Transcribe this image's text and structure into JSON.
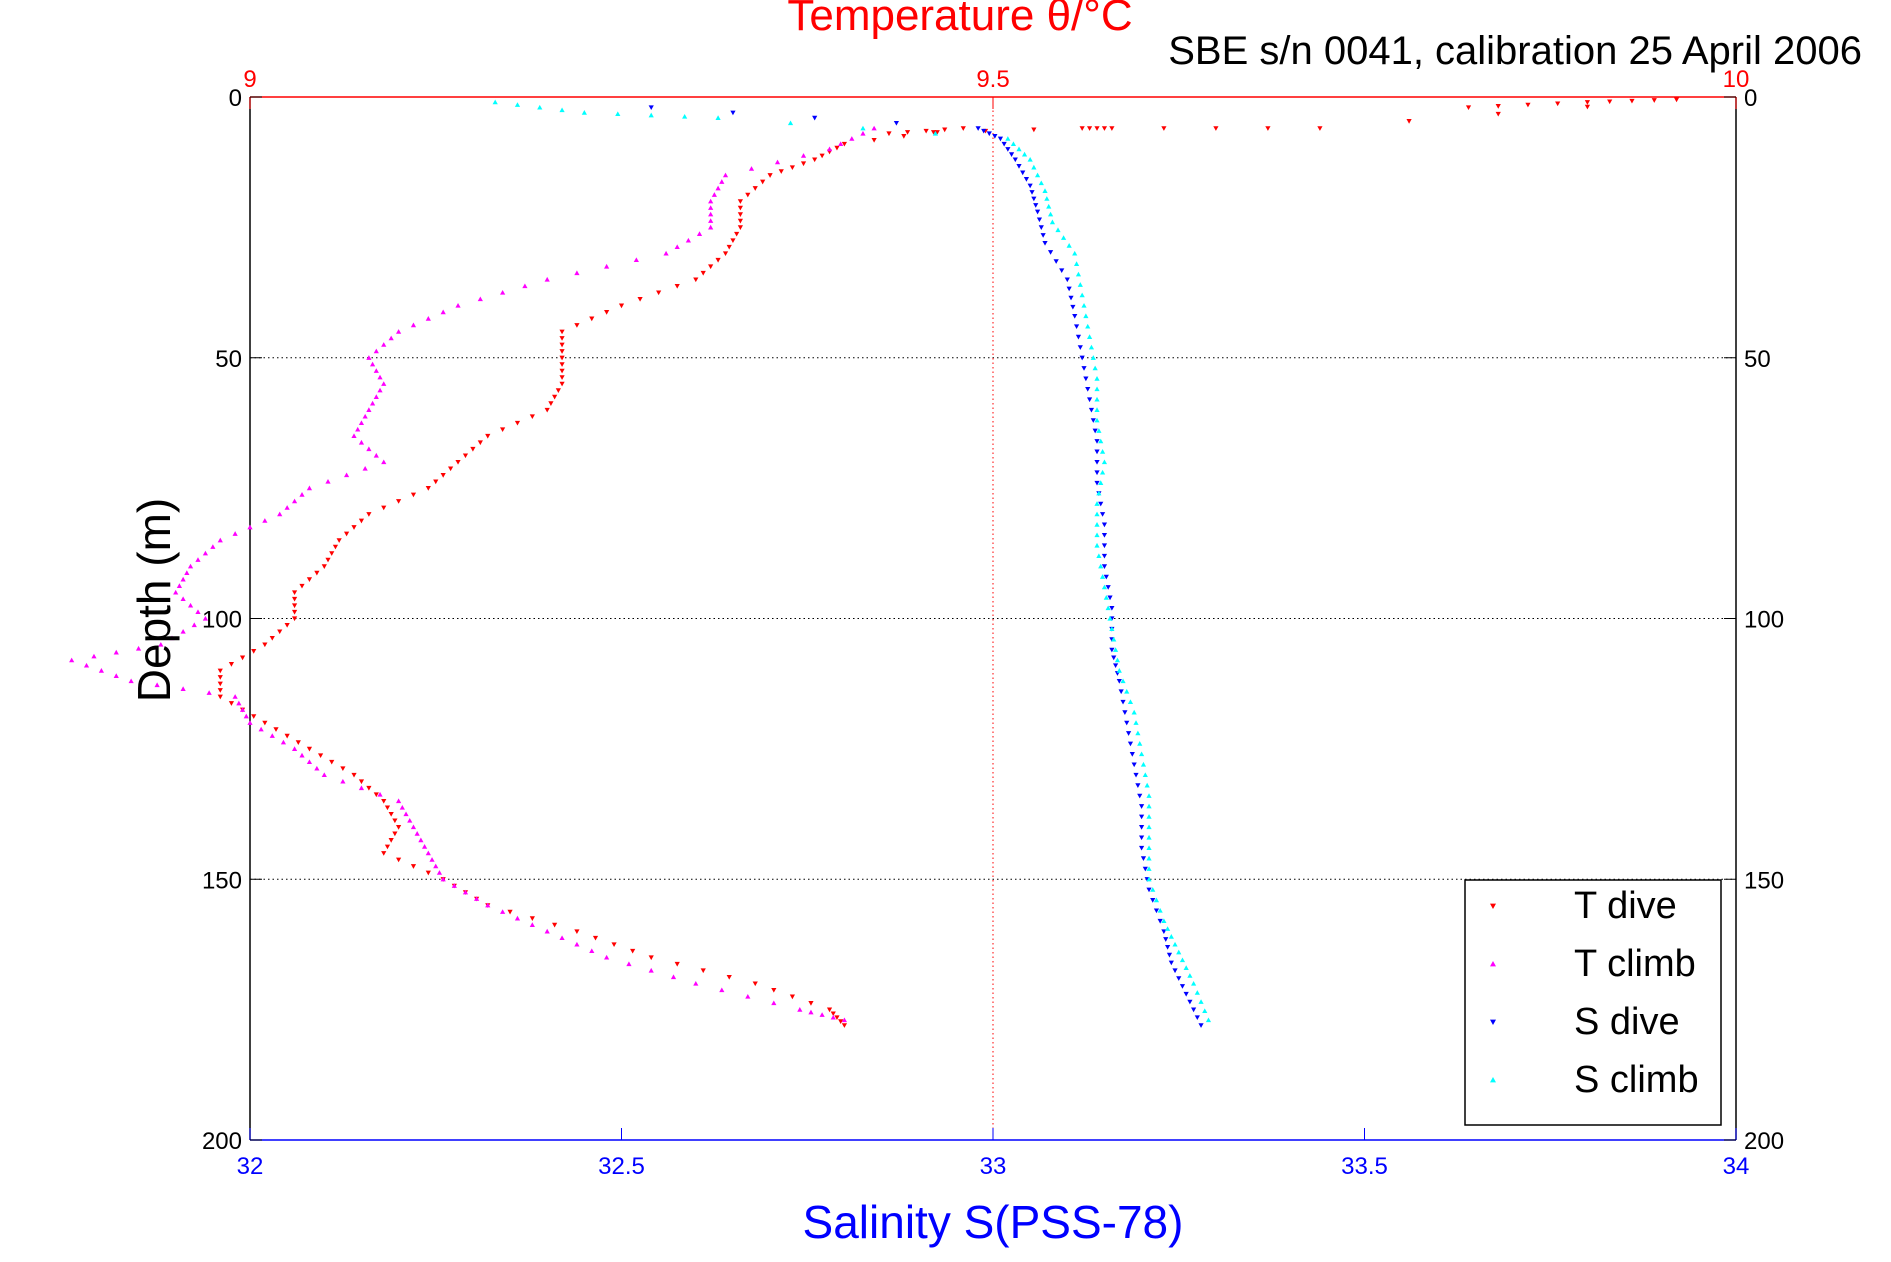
{
  "chart_data": {
    "type": "scatter",
    "title": "Temperature θ/°C",
    "subtitle": "SBE s/n 0041, calibration 25 April 2006",
    "xlabel": "Salinity S(PSS-78)",
    "ylabel": "Depth (m)",
    "x_salinity_range": [
      32,
      34
    ],
    "x_temperature_range": [
      9,
      10
    ],
    "y_range": [
      0,
      200
    ],
    "y_reversed": true,
    "salinity_ticks": [
      "32",
      "32.5",
      "33",
      "33.5",
      "34"
    ],
    "temperature_ticks": [
      "9",
      "9.5",
      "10"
    ],
    "depth_ticks": [
      "0",
      "50",
      "100",
      "150",
      "200"
    ],
    "grid": "horizontal dotted at depth ticks, vertical dotted at 9.5 °C / 33",
    "legend_position": "bottom-right",
    "colors": {
      "temperature_axis": "#ff0000",
      "salinity_axis": "#0000ff"
    },
    "series": [
      {
        "name": "T dive",
        "color": "#ff0000",
        "marker": "triangle-down",
        "axis": "temperature",
        "points": [
          [
            9.82,
            2
          ],
          [
            9.9,
            1
          ],
          [
            9.96,
            0.5
          ],
          [
            9.72,
            6
          ],
          [
            9.58,
            6
          ],
          [
            9.56,
            6
          ],
          [
            9.43,
            7
          ],
          [
            9.48,
            6
          ],
          [
            9.4,
            9
          ],
          [
            9.38,
            12
          ],
          [
            9.35,
            15
          ],
          [
            9.33,
            20
          ],
          [
            9.33,
            25
          ],
          [
            9.32,
            30
          ],
          [
            9.3,
            35
          ],
          [
            9.25,
            40
          ],
          [
            9.21,
            45
          ],
          [
            9.21,
            50
          ],
          [
            9.21,
            55
          ],
          [
            9.2,
            60
          ],
          [
            9.16,
            65
          ],
          [
            9.14,
            70
          ],
          [
            9.12,
            75
          ],
          [
            9.08,
            80
          ],
          [
            9.06,
            85
          ],
          [
            9.05,
            90
          ],
          [
            9.03,
            95
          ],
          [
            9.03,
            100
          ],
          [
            9.01,
            105
          ],
          [
            8.98,
            110
          ],
          [
            8.98,
            115
          ],
          [
            9.01,
            120
          ],
          [
            9.04,
            125
          ],
          [
            9.07,
            130
          ],
          [
            9.09,
            135
          ],
          [
            9.1,
            140
          ],
          [
            9.09,
            145
          ],
          [
            9.13,
            150
          ],
          [
            9.16,
            155
          ],
          [
            9.22,
            160
          ],
          [
            9.27,
            165
          ],
          [
            9.34,
            170
          ],
          [
            9.39,
            175
          ],
          [
            9.4,
            178
          ]
        ]
      },
      {
        "name": "T climb",
        "color": "#ff00ff",
        "marker": "triangle-up",
        "axis": "temperature",
        "points": [
          [
            9.42,
            6
          ],
          [
            9.39,
            10
          ],
          [
            9.32,
            15
          ],
          [
            9.31,
            20
          ],
          [
            9.31,
            25
          ],
          [
            9.28,
            30
          ],
          [
            9.2,
            35
          ],
          [
            9.14,
            40
          ],
          [
            9.1,
            45
          ],
          [
            9.08,
            50
          ],
          [
            9.09,
            55
          ],
          [
            9.08,
            60
          ],
          [
            9.07,
            65
          ],
          [
            9.09,
            70
          ],
          [
            9.04,
            75
          ],
          [
            9.02,
            80
          ],
          [
            8.98,
            85
          ],
          [
            8.96,
            90
          ],
          [
            8.95,
            95
          ],
          [
            8.97,
            100
          ],
          [
            8.94,
            105
          ],
          [
            8.88,
            108
          ],
          [
            8.92,
            112
          ],
          [
            8.99,
            115
          ],
          [
            9.0,
            120
          ],
          [
            9.03,
            125
          ],
          [
            9.05,
            130
          ],
          [
            9.1,
            135
          ],
          [
            9.11,
            140
          ],
          [
            9.12,
            145
          ],
          [
            9.13,
            150
          ],
          [
            9.16,
            155
          ],
          [
            9.2,
            160
          ],
          [
            9.24,
            165
          ],
          [
            9.3,
            170
          ],
          [
            9.37,
            175
          ],
          [
            9.4,
            177
          ]
        ]
      },
      {
        "name": "S dive",
        "color": "#0000ff",
        "marker": "triangle-down",
        "axis": "salinity",
        "points": [
          [
            32.54,
            2
          ],
          [
            32.98,
            6
          ],
          [
            33.01,
            8
          ],
          [
            33.03,
            12
          ],
          [
            33.05,
            17
          ],
          [
            33.06,
            22
          ],
          [
            33.07,
            28
          ],
          [
            33.1,
            35
          ],
          [
            33.11,
            42
          ],
          [
            33.12,
            50
          ],
          [
            33.13,
            58
          ],
          [
            33.14,
            66
          ],
          [
            33.14,
            74
          ],
          [
            33.15,
            82
          ],
          [
            33.15,
            90
          ],
          [
            33.16,
            98
          ],
          [
            33.16,
            106
          ],
          [
            33.17,
            112
          ],
          [
            33.18,
            120
          ],
          [
            33.19,
            128
          ],
          [
            33.2,
            136
          ],
          [
            33.2,
            144
          ],
          [
            33.21,
            152
          ],
          [
            33.23,
            160
          ],
          [
            33.24,
            166
          ],
          [
            33.26,
            172
          ],
          [
            33.28,
            178
          ]
        ]
      },
      {
        "name": "S climb",
        "color": "#00ffff",
        "marker": "triangle-up",
        "axis": "salinity",
        "points": [
          [
            32.33,
            1
          ],
          [
            32.45,
            3
          ],
          [
            32.63,
            4
          ],
          [
            33.02,
            8
          ],
          [
            33.05,
            12
          ],
          [
            33.07,
            18
          ],
          [
            33.08,
            24
          ],
          [
            33.11,
            30
          ],
          [
            33.12,
            38
          ],
          [
            33.13,
            46
          ],
          [
            33.14,
            54
          ],
          [
            33.14,
            62
          ],
          [
            33.15,
            70
          ],
          [
            33.14,
            78
          ],
          [
            33.14,
            86
          ],
          [
            33.15,
            94
          ],
          [
            33.16,
            102
          ],
          [
            33.17,
            110
          ],
          [
            33.19,
            118
          ],
          [
            33.2,
            126
          ],
          [
            33.21,
            134
          ],
          [
            33.21,
            142
          ],
          [
            33.21,
            150
          ],
          [
            33.23,
            158
          ],
          [
            33.25,
            164
          ],
          [
            33.27,
            170
          ],
          [
            33.29,
            177
          ]
        ]
      }
    ]
  }
}
